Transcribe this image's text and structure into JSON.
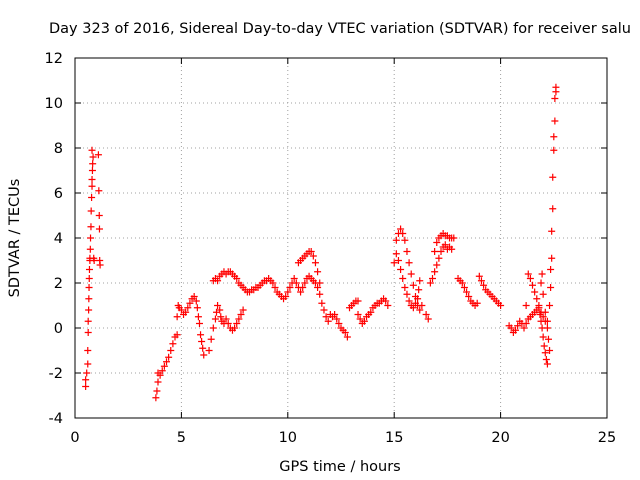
{
  "chart_data": {
    "type": "scatter",
    "title": "Day 323 of 2016, Sidereal Day-to-day VTEC variation (SDTVAR) for receiver salu",
    "xlabel": "GPS time / hours",
    "ylabel": "SDTVAR / TECUs",
    "xlim": [
      0,
      25
    ],
    "ylim": [
      -4,
      12
    ],
    "xticks": [
      0,
      5,
      10,
      15,
      20,
      25
    ],
    "yticks": [
      -4,
      -2,
      0,
      2,
      4,
      6,
      8,
      10,
      12
    ],
    "grid": true,
    "marker": "+",
    "series": [
      {
        "name": "SDTVAR",
        "color": "#ff0000",
        "points": [
          [
            0.5,
            -2.6
          ],
          [
            0.5,
            -2.3
          ],
          [
            0.55,
            -2.0
          ],
          [
            0.6,
            -1.6
          ],
          [
            0.6,
            -1.0
          ],
          [
            0.62,
            -0.2
          ],
          [
            0.62,
            0.3
          ],
          [
            0.64,
            0.8
          ],
          [
            0.65,
            1.3
          ],
          [
            0.66,
            1.8
          ],
          [
            0.67,
            2.2
          ],
          [
            0.68,
            2.6
          ],
          [
            0.7,
            3.0
          ],
          [
            0.7,
            3.1
          ],
          [
            0.72,
            3.5
          ],
          [
            0.73,
            4.0
          ],
          [
            0.75,
            4.5
          ],
          [
            0.76,
            5.2
          ],
          [
            0.78,
            5.8
          ],
          [
            0.8,
            6.3
          ],
          [
            0.8,
            6.6
          ],
          [
            0.82,
            7.0
          ],
          [
            0.83,
            7.3
          ],
          [
            0.85,
            7.6
          ],
          [
            0.8,
            7.9
          ],
          [
            0.88,
            3.1
          ],
          [
            0.9,
            3.0
          ],
          [
            1.1,
            7.7
          ],
          [
            1.12,
            6.1
          ],
          [
            1.14,
            5.0
          ],
          [
            1.15,
            4.4
          ],
          [
            1.16,
            3.0
          ],
          [
            1.18,
            2.8
          ],
          [
            3.8,
            -3.1
          ],
          [
            3.85,
            -2.8
          ],
          [
            3.9,
            -2.4
          ],
          [
            3.9,
            -2.0
          ],
          [
            4.0,
            -2.1
          ],
          [
            4.1,
            -1.9
          ],
          [
            4.2,
            -1.7
          ],
          [
            4.3,
            -1.5
          ],
          [
            4.4,
            -1.3
          ],
          [
            4.5,
            -1.0
          ],
          [
            4.6,
            -0.7
          ],
          [
            4.7,
            -0.4
          ],
          [
            4.8,
            -0.3
          ],
          [
            4.8,
            0.5
          ],
          [
            4.85,
            1.0
          ],
          [
            4.9,
            0.9
          ],
          [
            5.0,
            0.8
          ],
          [
            5.1,
            0.6
          ],
          [
            5.2,
            0.7
          ],
          [
            5.3,
            0.9
          ],
          [
            5.4,
            1.1
          ],
          [
            5.5,
            1.3
          ],
          [
            5.6,
            1.4
          ],
          [
            5.7,
            1.2
          ],
          [
            5.75,
            0.9
          ],
          [
            5.8,
            0.5
          ],
          [
            5.85,
            0.2
          ],
          [
            5.9,
            -0.3
          ],
          [
            5.95,
            -0.6
          ],
          [
            6.0,
            -0.9
          ],
          [
            6.05,
            -1.2
          ],
          [
            6.3,
            -1.0
          ],
          [
            6.4,
            -0.5
          ],
          [
            6.5,
            0.0
          ],
          [
            6.6,
            0.4
          ],
          [
            6.65,
            0.7
          ],
          [
            6.7,
            1.0
          ],
          [
            6.8,
            0.8
          ],
          [
            6.85,
            0.5
          ],
          [
            6.9,
            0.3
          ],
          [
            7.0,
            0.2
          ],
          [
            7.1,
            0.4
          ],
          [
            7.2,
            0.2
          ],
          [
            7.3,
            0.0
          ],
          [
            7.4,
            -0.1
          ],
          [
            7.5,
            0.0
          ],
          [
            7.6,
            0.2
          ],
          [
            7.7,
            0.4
          ],
          [
            7.8,
            0.6
          ],
          [
            7.9,
            0.8
          ],
          [
            6.5,
            2.1
          ],
          [
            6.6,
            2.2
          ],
          [
            6.7,
            2.1
          ],
          [
            6.8,
            2.3
          ],
          [
            6.9,
            2.4
          ],
          [
            7.0,
            2.5
          ],
          [
            7.1,
            2.4
          ],
          [
            7.2,
            2.5
          ],
          [
            7.3,
            2.5
          ],
          [
            7.4,
            2.4
          ],
          [
            7.5,
            2.3
          ],
          [
            7.6,
            2.2
          ],
          [
            7.7,
            2.0
          ],
          [
            7.8,
            1.9
          ],
          [
            7.9,
            1.8
          ],
          [
            8.0,
            1.7
          ],
          [
            8.1,
            1.6
          ],
          [
            8.2,
            1.6
          ],
          [
            8.3,
            1.7
          ],
          [
            8.4,
            1.7
          ],
          [
            8.5,
            1.8
          ],
          [
            8.6,
            1.8
          ],
          [
            8.7,
            1.9
          ],
          [
            8.8,
            2.0
          ],
          [
            8.9,
            2.1
          ],
          [
            9.0,
            2.1
          ],
          [
            9.1,
            2.2
          ],
          [
            9.2,
            2.1
          ],
          [
            9.3,
            2.0
          ],
          [
            9.4,
            1.8
          ],
          [
            9.5,
            1.6
          ],
          [
            9.6,
            1.5
          ],
          [
            9.7,
            1.4
          ],
          [
            9.8,
            1.3
          ],
          [
            9.9,
            1.4
          ],
          [
            10.0,
            1.6
          ],
          [
            10.1,
            1.8
          ],
          [
            10.2,
            2.0
          ],
          [
            10.3,
            2.2
          ],
          [
            10.4,
            2.0
          ],
          [
            10.5,
            1.8
          ],
          [
            10.6,
            1.6
          ],
          [
            10.7,
            1.8
          ],
          [
            10.8,
            2.0
          ],
          [
            10.9,
            2.2
          ],
          [
            11.0,
            2.3
          ],
          [
            11.1,
            2.2
          ],
          [
            11.2,
            2.1
          ],
          [
            11.3,
            2.0
          ],
          [
            11.4,
            1.8
          ],
          [
            11.5,
            1.5
          ],
          [
            11.6,
            1.1
          ],
          [
            11.7,
            0.8
          ],
          [
            11.8,
            0.5
          ],
          [
            11.9,
            0.3
          ],
          [
            10.5,
            2.9
          ],
          [
            10.6,
            3.0
          ],
          [
            10.7,
            3.1
          ],
          [
            10.8,
            3.2
          ],
          [
            10.9,
            3.3
          ],
          [
            11.0,
            3.4
          ],
          [
            11.1,
            3.4
          ],
          [
            11.2,
            3.2
          ],
          [
            11.3,
            2.9
          ],
          [
            11.4,
            2.5
          ],
          [
            11.5,
            2.0
          ],
          [
            12.0,
            0.6
          ],
          [
            12.1,
            0.5
          ],
          [
            12.2,
            0.6
          ],
          [
            12.3,
            0.4
          ],
          [
            12.4,
            0.2
          ],
          [
            12.5,
            0.0
          ],
          [
            12.6,
            -0.1
          ],
          [
            12.7,
            -0.2
          ],
          [
            12.8,
            -0.4
          ],
          [
            12.9,
            0.9
          ],
          [
            13.0,
            1.0
          ],
          [
            13.1,
            1.1
          ],
          [
            13.2,
            1.2
          ],
          [
            13.3,
            1.2
          ],
          [
            13.3,
            0.6
          ],
          [
            13.4,
            0.4
          ],
          [
            13.5,
            0.2
          ],
          [
            13.6,
            0.3
          ],
          [
            13.7,
            0.5
          ],
          [
            13.8,
            0.6
          ],
          [
            13.9,
            0.7
          ],
          [
            14.0,
            0.9
          ],
          [
            14.1,
            1.0
          ],
          [
            14.2,
            1.1
          ],
          [
            14.3,
            1.1
          ],
          [
            14.4,
            1.2
          ],
          [
            14.5,
            1.3
          ],
          [
            14.6,
            1.2
          ],
          [
            14.7,
            1.0
          ],
          [
            15.0,
            2.9
          ],
          [
            15.1,
            3.3
          ],
          [
            15.1,
            3.9
          ],
          [
            15.2,
            4.2
          ],
          [
            15.3,
            4.4
          ],
          [
            15.4,
            4.2
          ],
          [
            15.5,
            3.9
          ],
          [
            15.6,
            3.4
          ],
          [
            15.7,
            2.9
          ],
          [
            15.8,
            2.4
          ],
          [
            15.9,
            1.9
          ],
          [
            16.0,
            1.4
          ],
          [
            16.1,
            1.0
          ],
          [
            16.2,
            0.8
          ],
          [
            16.3,
            1.0
          ],
          [
            15.2,
            3.0
          ],
          [
            15.3,
            2.6
          ],
          [
            15.4,
            2.2
          ],
          [
            15.5,
            1.8
          ],
          [
            15.6,
            1.5
          ],
          [
            15.7,
            1.2
          ],
          [
            15.8,
            1.0
          ],
          [
            15.9,
            0.9
          ],
          [
            16.0,
            1.1
          ],
          [
            16.1,
            1.3
          ],
          [
            16.15,
            1.7
          ],
          [
            16.2,
            2.1
          ],
          [
            16.5,
            0.6
          ],
          [
            16.6,
            0.4
          ],
          [
            16.7,
            2.0
          ],
          [
            16.8,
            2.2
          ],
          [
            16.9,
            2.5
          ],
          [
            17.0,
            2.8
          ],
          [
            17.1,
            3.1
          ],
          [
            17.2,
            3.4
          ],
          [
            17.3,
            3.6
          ],
          [
            17.4,
            3.7
          ],
          [
            17.5,
            3.5
          ],
          [
            17.6,
            3.6
          ],
          [
            17.7,
            3.5
          ],
          [
            16.9,
            3.4
          ],
          [
            17.0,
            3.8
          ],
          [
            17.1,
            4.0
          ],
          [
            17.2,
            4.1
          ],
          [
            17.3,
            4.2
          ],
          [
            17.4,
            4.1
          ],
          [
            17.5,
            4.1
          ],
          [
            17.6,
            4.0
          ],
          [
            17.7,
            4.0
          ],
          [
            17.8,
            4.0
          ],
          [
            18.0,
            2.2
          ],
          [
            18.1,
            2.1
          ],
          [
            18.2,
            2.0
          ],
          [
            18.3,
            1.8
          ],
          [
            18.4,
            1.6
          ],
          [
            18.5,
            1.4
          ],
          [
            18.6,
            1.2
          ],
          [
            18.7,
            1.1
          ],
          [
            18.8,
            1.0
          ],
          [
            18.9,
            1.1
          ],
          [
            19.0,
            2.3
          ],
          [
            19.1,
            2.1
          ],
          [
            19.2,
            1.9
          ],
          [
            19.3,
            1.7
          ],
          [
            19.4,
            1.6
          ],
          [
            19.5,
            1.5
          ],
          [
            19.6,
            1.4
          ],
          [
            19.7,
            1.3
          ],
          [
            19.8,
            1.2
          ],
          [
            19.9,
            1.1
          ],
          [
            20.0,
            1.0
          ],
          [
            20.4,
            0.1
          ],
          [
            20.5,
            0.0
          ],
          [
            20.6,
            -0.2
          ],
          [
            20.7,
            -0.1
          ],
          [
            20.8,
            0.1
          ],
          [
            20.9,
            0.3
          ],
          [
            21.0,
            0.2
          ],
          [
            21.1,
            0.0
          ],
          [
            21.2,
            0.2
          ],
          [
            21.3,
            0.4
          ],
          [
            21.4,
            0.5
          ],
          [
            21.5,
            0.6
          ],
          [
            21.6,
            0.7
          ],
          [
            21.7,
            0.8
          ],
          [
            21.8,
            0.9
          ],
          [
            21.85,
            0.6
          ],
          [
            21.9,
            0.3
          ],
          [
            21.95,
            0.0
          ],
          [
            22.0,
            -0.4
          ],
          [
            22.05,
            -0.8
          ],
          [
            22.1,
            -1.1
          ],
          [
            22.15,
            -1.4
          ],
          [
            22.2,
            -1.6
          ],
          [
            21.2,
            1.0
          ],
          [
            21.3,
            2.4
          ],
          [
            21.4,
            2.2
          ],
          [
            21.5,
            1.9
          ],
          [
            21.6,
            1.6
          ],
          [
            21.7,
            1.3
          ],
          [
            21.8,
            1.0
          ],
          [
            21.9,
            0.7
          ],
          [
            22.0,
            0.5
          ],
          [
            22.1,
            0.3
          ],
          [
            22.2,
            0.0
          ],
          [
            22.25,
            -0.5
          ],
          [
            22.3,
            -1.0
          ],
          [
            21.9,
            2.0
          ],
          [
            21.95,
            2.4
          ],
          [
            22.0,
            1.5
          ],
          [
            22.1,
            0.7
          ],
          [
            22.2,
            0.3
          ],
          [
            22.3,
            1.0
          ],
          [
            22.35,
            1.8
          ],
          [
            22.35,
            2.6
          ],
          [
            22.4,
            3.1
          ],
          [
            22.4,
            4.3
          ],
          [
            22.45,
            5.3
          ],
          [
            22.45,
            6.7
          ],
          [
            22.5,
            7.9
          ],
          [
            22.5,
            8.5
          ],
          [
            22.55,
            9.2
          ],
          [
            22.55,
            10.2
          ],
          [
            22.6,
            10.5
          ],
          [
            22.6,
            10.7
          ]
        ]
      }
    ]
  }
}
